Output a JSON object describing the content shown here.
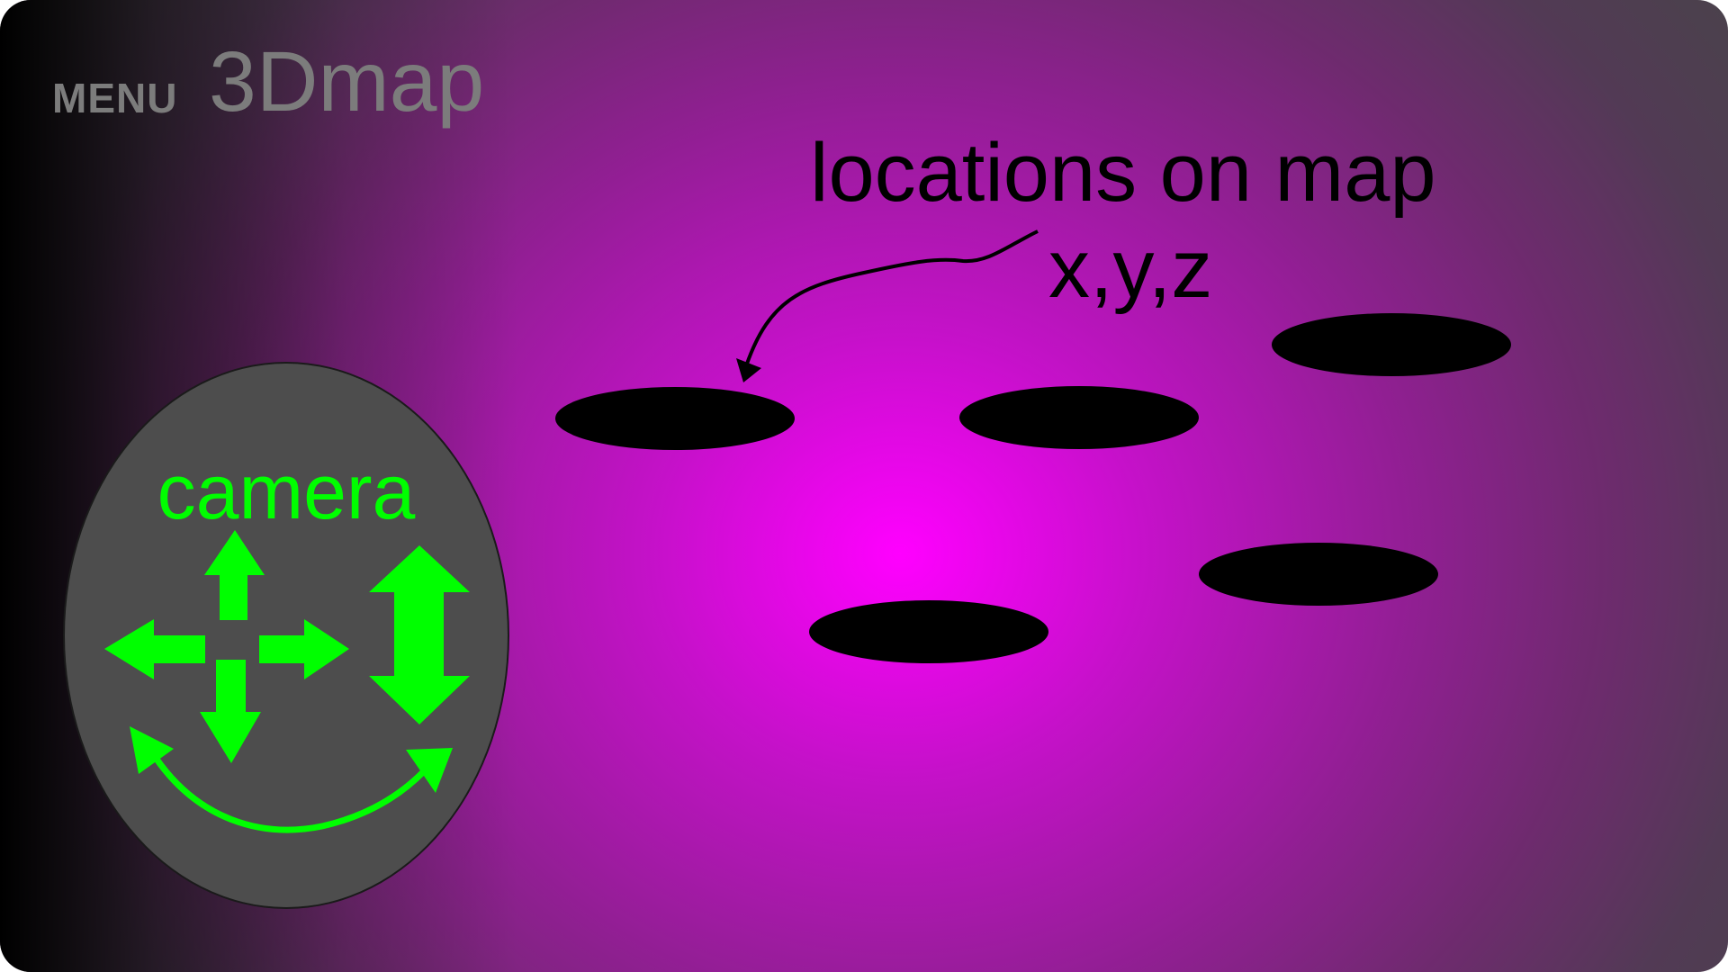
{
  "header": {
    "menu_label": "MENU",
    "app_title": "3Dmap"
  },
  "annotation": {
    "line1": "locations on map",
    "line2": "x,y,z"
  },
  "camera": {
    "label": "camera",
    "controls": [
      "pan-up",
      "pan-down",
      "pan-left",
      "pan-right",
      "zoom-in-out",
      "orbit"
    ]
  },
  "colors": {
    "background_center": "#ff00ff",
    "background_edge": "#464646",
    "camera_panel": "#4d4d4d",
    "camera_accent": "#00ff00",
    "marker": "#000000",
    "header_text": "#7c7c7c"
  },
  "locations": [
    {
      "id": "location-1"
    },
    {
      "id": "location-2"
    },
    {
      "id": "location-3"
    },
    {
      "id": "location-4"
    },
    {
      "id": "location-5"
    }
  ]
}
